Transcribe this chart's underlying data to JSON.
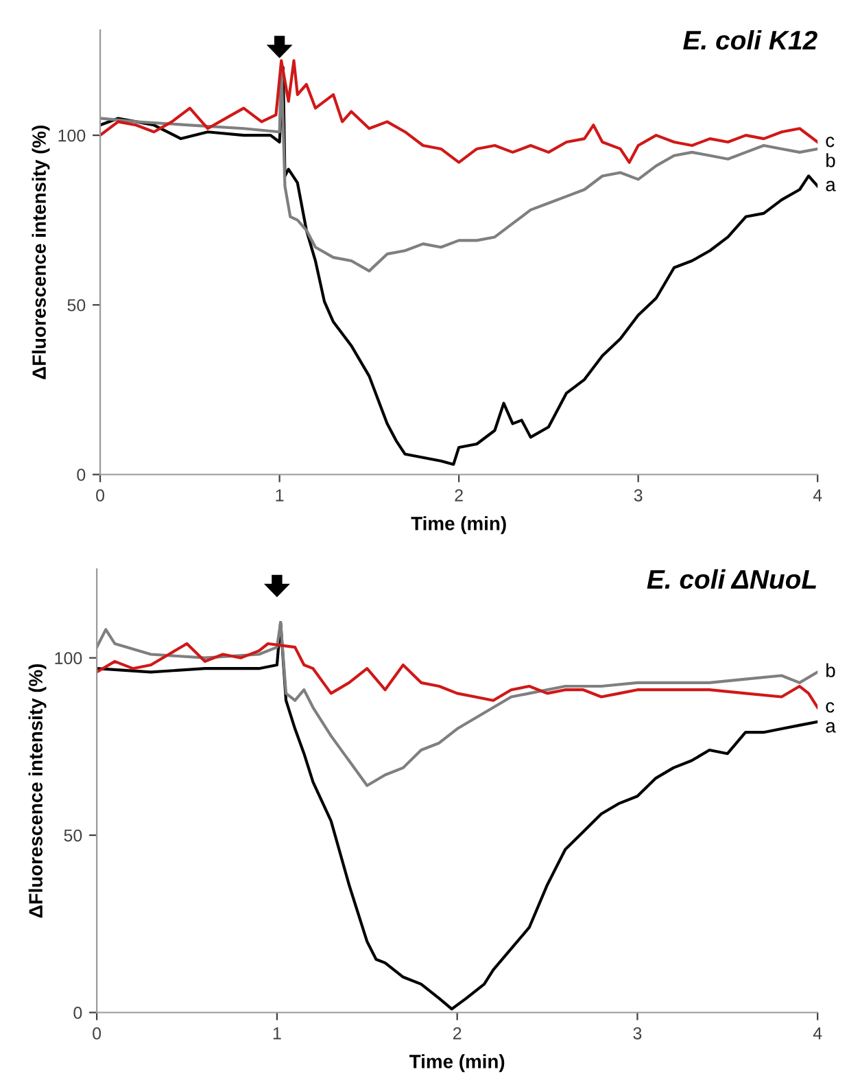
{
  "chart_data": [
    {
      "type": "line",
      "title": "E. coli K12",
      "xlabel": "Time (min)",
      "ylabel": "ΔFluorescence intensity (%)",
      "xlim": [
        0,
        4
      ],
      "ylim": [
        0,
        131
      ],
      "xticks": [
        0,
        1,
        2,
        3,
        4
      ],
      "yticks": [
        0,
        50,
        100
      ],
      "grid": false,
      "legend": false,
      "marker": "none",
      "line_style": "solid",
      "series": [
        {
          "name": "a",
          "color": "#000000",
          "x": [
            0,
            0.1,
            0.2,
            0.3,
            0.45,
            0.6,
            0.8,
            0.95,
            1.0,
            1.02,
            1.03,
            1.05,
            1.1,
            1.15,
            1.2,
            1.25,
            1.3,
            1.4,
            1.5,
            1.55,
            1.6,
            1.65,
            1.7,
            1.8,
            1.9,
            1.97,
            2.0,
            2.1,
            2.2,
            2.25,
            2.3,
            2.35,
            2.4,
            2.5,
            2.6,
            2.7,
            2.8,
            2.9,
            3.0,
            3.1,
            3.2,
            3.3,
            3.4,
            3.5,
            3.6,
            3.7,
            3.8,
            3.9,
            3.95,
            4.0
          ],
          "values": [
            103,
            105,
            104,
            103,
            99,
            101,
            100,
            100,
            98,
            120,
            88,
            90,
            86,
            72,
            63,
            51,
            45,
            38,
            29,
            22,
            15,
            10,
            6,
            5,
            4,
            3,
            8,
            9,
            13,
            21,
            15,
            16,
            11,
            14,
            24,
            28,
            35,
            40,
            47,
            52,
            61,
            63,
            66,
            70,
            76,
            77,
            81,
            84,
            88,
            85
          ]
        },
        {
          "name": "b",
          "color": "#7f7f7f",
          "x": [
            0,
            0.2,
            0.5,
            0.8,
            1.0,
            1.01,
            1.03,
            1.06,
            1.1,
            1.15,
            1.2,
            1.3,
            1.4,
            1.5,
            1.6,
            1.7,
            1.8,
            1.9,
            2.0,
            2.1,
            2.2,
            2.3,
            2.4,
            2.5,
            2.6,
            2.7,
            2.8,
            2.9,
            3.0,
            3.1,
            3.2,
            3.3,
            3.4,
            3.5,
            3.6,
            3.7,
            3.8,
            3.9,
            4.0
          ],
          "values": [
            105,
            104,
            103,
            102,
            101,
            121,
            85,
            76,
            75,
            72,
            67,
            64,
            63,
            60,
            65,
            66,
            68,
            67,
            69,
            69,
            70,
            74,
            78,
            80,
            82,
            84,
            88,
            89,
            87,
            91,
            94,
            95,
            94,
            93,
            95,
            97,
            96,
            95,
            96
          ]
        },
        {
          "name": "c",
          "color": "#d01818",
          "x": [
            0,
            0.1,
            0.2,
            0.3,
            0.4,
            0.5,
            0.6,
            0.7,
            0.8,
            0.9,
            0.98,
            1.01,
            1.05,
            1.08,
            1.1,
            1.15,
            1.2,
            1.3,
            1.35,
            1.4,
            1.5,
            1.6,
            1.7,
            1.8,
            1.9,
            2.0,
            2.1,
            2.2,
            2.3,
            2.4,
            2.5,
            2.6,
            2.7,
            2.75,
            2.8,
            2.9,
            2.95,
            3.0,
            3.1,
            3.2,
            3.3,
            3.4,
            3.5,
            3.6,
            3.7,
            3.8,
            3.9,
            4.0
          ],
          "values": [
            100,
            104,
            103,
            101,
            104,
            108,
            102,
            105,
            108,
            104,
            106,
            122,
            110,
            122,
            112,
            115,
            108,
            112,
            104,
            107,
            102,
            104,
            101,
            97,
            96,
            92,
            96,
            97,
            95,
            97,
            95,
            98,
            99,
            103,
            98,
            96,
            92,
            97,
            100,
            98,
            97,
            99,
            98,
            100,
            99,
            101,
            102,
            98
          ]
        }
      ]
    },
    {
      "type": "line",
      "title": "E. coli ΔNuoL",
      "xlabel": "Time (min)",
      "ylabel": "ΔFluorescence intensity (%)",
      "xlim": [
        0,
        4
      ],
      "ylim": [
        0,
        125
      ],
      "xticks": [
        0,
        1,
        2,
        3,
        4
      ],
      "yticks": [
        0,
        50,
        100
      ],
      "grid": false,
      "legend": false,
      "marker": "none",
      "line_style": "solid",
      "series": [
        {
          "name": "a",
          "color": "#000000",
          "x": [
            0,
            0.3,
            0.6,
            0.9,
            1.0,
            1.02,
            1.05,
            1.1,
            1.15,
            1.2,
            1.3,
            1.35,
            1.4,
            1.5,
            1.55,
            1.6,
            1.7,
            1.8,
            1.9,
            1.97,
            2.05,
            2.15,
            2.2,
            2.3,
            2.4,
            2.5,
            2.6,
            2.7,
            2.8,
            2.9,
            3.0,
            3.1,
            3.2,
            3.3,
            3.4,
            3.5,
            3.6,
            3.7,
            3.8,
            3.9,
            4.0
          ],
          "values": [
            97,
            96,
            97,
            97,
            98,
            110,
            88,
            80,
            73,
            65,
            54,
            45,
            36,
            20,
            15,
            14,
            10,
            8,
            4,
            1,
            4,
            8,
            12,
            18,
            24,
            36,
            46,
            51,
            56,
            59,
            61,
            66,
            69,
            71,
            74,
            73,
            79,
            79,
            80,
            81,
            82
          ]
        },
        {
          "name": "b",
          "color": "#7f7f7f",
          "x": [
            0,
            0.05,
            0.1,
            0.3,
            0.6,
            0.9,
            1.0,
            1.02,
            1.05,
            1.1,
            1.15,
            1.2,
            1.3,
            1.4,
            1.5,
            1.6,
            1.7,
            1.8,
            1.9,
            2.0,
            2.1,
            2.2,
            2.3,
            2.4,
            2.6,
            2.8,
            3.0,
            3.2,
            3.4,
            3.6,
            3.8,
            3.9,
            4.0
          ],
          "values": [
            103,
            108,
            104,
            101,
            100,
            101,
            103,
            110,
            90,
            88,
            91,
            86,
            78,
            71,
            64,
            67,
            69,
            74,
            76,
            80,
            83,
            86,
            89,
            90,
            92,
            92,
            93,
            93,
            93,
            94,
            95,
            93,
            96
          ]
        },
        {
          "name": "c",
          "color": "#d01818",
          "x": [
            0,
            0.1,
            0.2,
            0.3,
            0.4,
            0.5,
            0.6,
            0.7,
            0.8,
            0.9,
            0.95,
            1.1,
            1.15,
            1.2,
            1.3,
            1.4,
            1.5,
            1.6,
            1.7,
            1.8,
            1.9,
            2.0,
            2.1,
            2.2,
            2.3,
            2.4,
            2.5,
            2.6,
            2.7,
            2.8,
            2.9,
            3.0,
            3.2,
            3.4,
            3.6,
            3.8,
            3.9,
            3.95,
            4.0
          ],
          "values": [
            96,
            99,
            97,
            98,
            101,
            104,
            99,
            101,
            100,
            102,
            104,
            103,
            98,
            97,
            90,
            93,
            97,
            91,
            98,
            93,
            92,
            90,
            89,
            88,
            91,
            92,
            90,
            91,
            91,
            89,
            90,
            91,
            91,
            91,
            90,
            89,
            92,
            90,
            86
          ]
        }
      ]
    }
  ]
}
